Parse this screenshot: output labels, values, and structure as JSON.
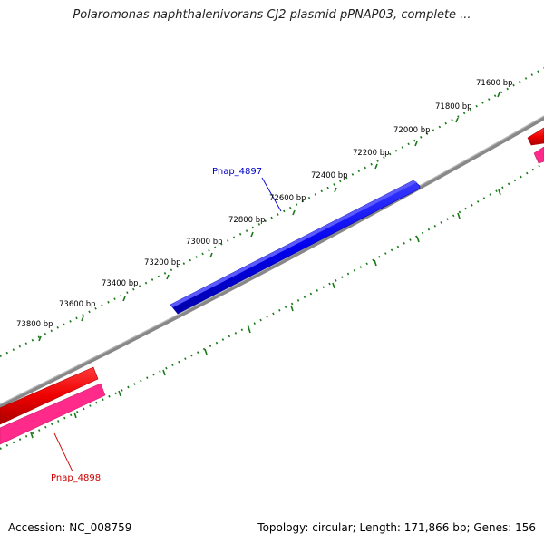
{
  "header": {
    "title": "Polaromonas naphthalenivorans CJ2 plasmid pPNAP03, complete ..."
  },
  "map": {
    "backbone_color": "#808080",
    "tick_color": "#1a7a1a",
    "forward_gene_color": "#0000ee",
    "reverse_gene_color": "#ee0000",
    "reverse_gene_shadow_color": "#ff2a8a",
    "tick_labels": [
      "71600 bp",
      "71800 bp",
      "72000 bp",
      "72200 bp",
      "72400 bp",
      "72600 bp",
      "72800 bp",
      "73000 bp",
      "73200 bp",
      "73400 bp",
      "73600 bp",
      "73800 bp"
    ],
    "genes": [
      {
        "name": "Pnap_4897",
        "strand": "forward",
        "color": "#0000cc"
      },
      {
        "name": "Pnap_4898",
        "strand": "reverse",
        "color": "#cc0000"
      }
    ]
  },
  "footer": {
    "accession": "Accession: NC_008759",
    "summary": "Topology: circular; Length: 171,866 bp; Genes: 156"
  }
}
